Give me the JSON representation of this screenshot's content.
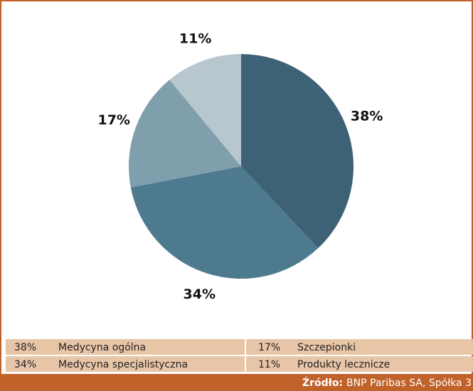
{
  "chart_data": {
    "type": "pie",
    "categories": [
      "Medycyna ogólna",
      "Medycyna specjalistyczna",
      "Szczepionki",
      "Produkty lecznicze"
    ],
    "values": [
      38,
      34,
      17,
      11
    ],
    "value_labels": [
      "38%",
      "34%",
      "17%",
      "11%"
    ],
    "colors": [
      "#3e6275",
      "#4e7a90",
      "#7f9fac",
      "#b8c6ce"
    ],
    "source_label": "Źródło:",
    "source": "BNP Paribas SA, Spółka 3"
  }
}
